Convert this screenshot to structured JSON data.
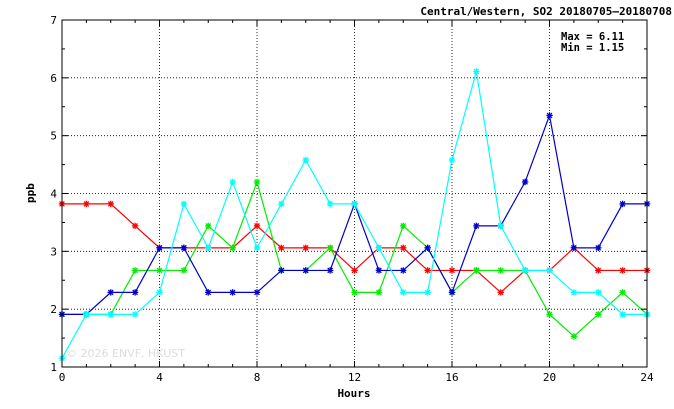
{
  "chart_data": {
    "type": "line",
    "title": "Central/Western, SO2 20180705–20180708",
    "xlabel": "Hours",
    "ylabel": "ppb",
    "xlim": [
      0,
      24
    ],
    "ylim": [
      1,
      7
    ],
    "x_ticks": [
      0,
      4,
      8,
      12,
      16,
      20,
      24
    ],
    "y_ticks": [
      1,
      2,
      3,
      4,
      5,
      6,
      7
    ],
    "grid": true,
    "marker": "asterisk",
    "stats": {
      "max_label": "Max = 6.11",
      "min_label": "Min = 1.15"
    },
    "watermark": "© 2026  ENVF, HKUST",
    "x": [
      0,
      1,
      2,
      3,
      4,
      5,
      6,
      7,
      8,
      9,
      10,
      11,
      12,
      13,
      14,
      15,
      16,
      17,
      18,
      19,
      20,
      21,
      22,
      23,
      24
    ],
    "series": [
      {
        "color": "#ff0000",
        "values": [
          3.82,
          3.82,
          3.82,
          3.44,
          3.06,
          3.06,
          3.06,
          3.06,
          3.44,
          3.06,
          3.06,
          3.06,
          2.67,
          3.06,
          3.06,
          2.67,
          2.67,
          2.67,
          2.29,
          2.67,
          2.67,
          3.06,
          2.67,
          2.67,
          2.67
        ]
      },
      {
        "color": "#00ee00",
        "values": [
          1.91,
          1.91,
          1.91,
          2.67,
          2.67,
          2.67,
          3.44,
          3.06,
          4.2,
          2.67,
          2.67,
          3.06,
          2.29,
          2.29,
          3.44,
          3.06,
          2.29,
          2.67,
          2.67,
          2.67,
          1.91,
          1.53,
          1.91,
          2.29,
          1.91
        ]
      },
      {
        "color": "#0000cc",
        "values": [
          1.91,
          1.91,
          2.29,
          2.29,
          3.06,
          3.06,
          2.29,
          2.29,
          2.29,
          2.67,
          2.67,
          2.67,
          3.82,
          2.67,
          2.67,
          3.06,
          2.29,
          3.44,
          3.44,
          4.2,
          5.35,
          3.06,
          3.06,
          3.82,
          3.82
        ]
      },
      {
        "color": "#00ffff",
        "values": [
          1.15,
          1.91,
          1.91,
          1.91,
          2.29,
          3.82,
          3.06,
          4.2,
          3.06,
          3.82,
          4.58,
          3.82,
          3.82,
          3.06,
          2.29,
          2.29,
          4.58,
          6.11,
          3.44,
          2.67,
          2.67,
          2.29,
          2.29,
          1.91,
          1.91
        ]
      }
    ]
  }
}
